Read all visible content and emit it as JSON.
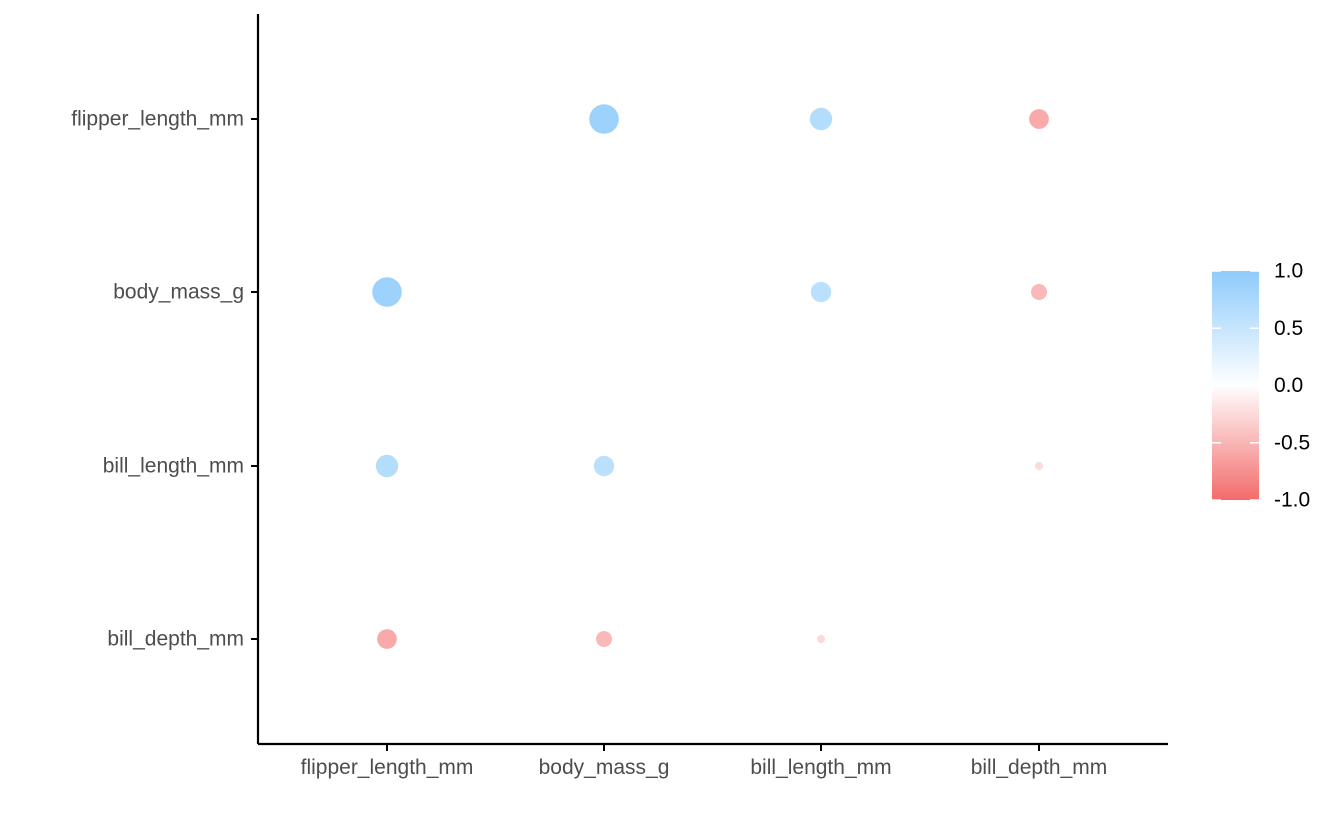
{
  "chart_data": {
    "type": "scatter",
    "subtype": "correlation-matrix-bubble",
    "x_categories": [
      "flipper_length_mm",
      "body_mass_g",
      "bill_length_mm",
      "bill_depth_mm"
    ],
    "y_categories": [
      "flipper_length_mm",
      "body_mass_g",
      "bill_length_mm",
      "bill_depth_mm"
    ],
    "points": [
      {
        "x": "body_mass_g",
        "y": "flipper_length_mm",
        "value": 0.87
      },
      {
        "x": "bill_length_mm",
        "y": "flipper_length_mm",
        "value": 0.66
      },
      {
        "x": "bill_depth_mm",
        "y": "flipper_length_mm",
        "value": -0.58
      },
      {
        "x": "flipper_length_mm",
        "y": "body_mass_g",
        "value": 0.87
      },
      {
        "x": "bill_length_mm",
        "y": "body_mass_g",
        "value": 0.6
      },
      {
        "x": "bill_depth_mm",
        "y": "body_mass_g",
        "value": -0.47
      },
      {
        "x": "flipper_length_mm",
        "y": "bill_length_mm",
        "value": 0.66
      },
      {
        "x": "body_mass_g",
        "y": "bill_length_mm",
        "value": 0.6
      },
      {
        "x": "bill_depth_mm",
        "y": "bill_length_mm",
        "value": -0.24
      },
      {
        "x": "flipper_length_mm",
        "y": "bill_depth_mm",
        "value": -0.58
      },
      {
        "x": "body_mass_g",
        "y": "bill_depth_mm",
        "value": -0.47
      },
      {
        "x": "bill_length_mm",
        "y": "bill_depth_mm",
        "value": -0.24
      }
    ],
    "legend": {
      "position": "right",
      "labels": [
        "1.0",
        "0.5",
        "0.0",
        "-0.5",
        "-1.0"
      ],
      "breaks": [
        1.0,
        0.5,
        0.0,
        -0.5,
        -1.0
      ],
      "range": [
        -1.0,
        1.0
      ]
    },
    "colors": {
      "positive": "#8ecbfb",
      "neutral": "#ffffff",
      "negative": "#f36b6b",
      "axis": "#000000",
      "tick_text": "#4d4d4d",
      "legend_text": "#000000"
    },
    "grid": false,
    "title": "",
    "xlabel": "",
    "ylabel": ""
  }
}
